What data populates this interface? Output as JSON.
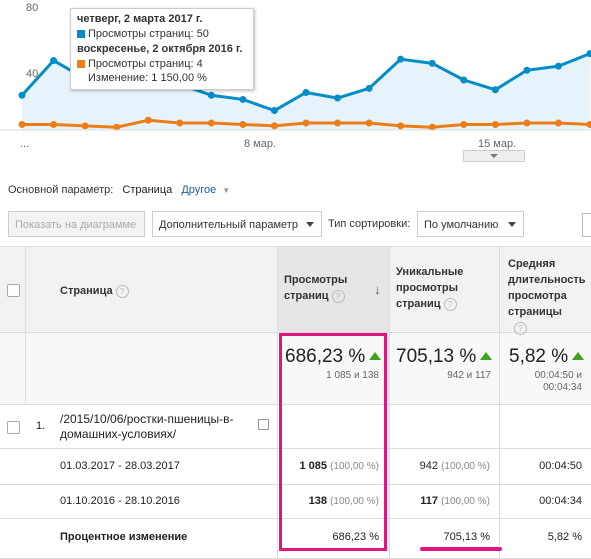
{
  "chart_data": {
    "type": "line",
    "ylim": [
      0,
      90
    ],
    "y_ticks": [
      "80",
      "40"
    ],
    "x_ticks": [
      "...",
      "8 мар.",
      "15 мар."
    ],
    "x": [
      "2017-03-01",
      "2017-03-02",
      "2017-03-03",
      "2017-03-04",
      "2017-03-05",
      "2017-03-06",
      "2017-03-07",
      "2017-03-08",
      "2017-03-09",
      "2017-03-10",
      "2017-03-11",
      "2017-03-12",
      "2017-03-13",
      "2017-03-14",
      "2017-03-15",
      "2017-03-16",
      "2017-03-17",
      "2017-03-18",
      "2017-03-19"
    ],
    "series": [
      {
        "name": "Просмотры страниц",
        "color": "#058dc7",
        "values": [
          25,
          50,
          37,
          37,
          33,
          33,
          25,
          22,
          14,
          27,
          23,
          30,
          51,
          48,
          36,
          29,
          43,
          46,
          55
        ]
      },
      {
        "name": "Просмотры страниц",
        "color": "#ed7e17",
        "values": [
          4,
          4,
          3,
          2,
          7,
          5,
          5,
          4,
          3,
          5,
          5,
          5,
          3,
          2,
          4,
          4,
          5,
          5,
          4
        ]
      }
    ],
    "grid": false
  },
  "tooltip": {
    "date1": "четверг, 2 марта 2017 г.",
    "row1": "Просмотры страниц: 50",
    "date2": "воскресенье, 2 октября 2016 г.",
    "row2": "Просмотры страниц: 4",
    "change": "Изменение: 1 150,00 %"
  },
  "controls": {
    "dimension_label": "Основной параметр:",
    "dimension_value": "Страница",
    "other_link": "Другое",
    "show_on_chart": "Показать на диаграмме",
    "secondary_dim": "Дополнительный параметр",
    "sort_label": "Тип сортировки:",
    "sort_value": "По умолчанию"
  },
  "table": {
    "headers": {
      "page": "Страница",
      "pageviews_1": "Просмотры",
      "pageviews_2": "страниц",
      "unique_1": "Уникальные",
      "unique_2": "просмотры",
      "unique_3": "страниц",
      "avg_1": "Средняя",
      "avg_2": "длительность",
      "avg_3": "просмотра",
      "avg_4": "страницы"
    },
    "totals": {
      "pageviews_change": "686,23 %",
      "pageviews_sub": "1 085 и 138",
      "unique_change": "705,13 %",
      "unique_sub": "942 и 117",
      "avg_change": "5,82 %",
      "avg_sub1": "00:04:50 и",
      "avg_sub2": "00:04:34"
    },
    "row": {
      "index": "1.",
      "path_line1": "/2015/10/06/ростки-пшеницы-в-",
      "path_line2": "домашних-условиях/"
    },
    "period1": {
      "label": "01.03.2017 - 28.03.2017",
      "pageviews": "1 085",
      "pageviews_pct": "(100,00 %)",
      "unique": "942",
      "unique_pct": "(100,00 %)",
      "avg": "00:04:50"
    },
    "period2": {
      "label": "01.10.2016 - 28.10.2016",
      "pageviews": "138",
      "pageviews_pct": "(100,00 %)",
      "unique": "117",
      "unique_pct": "(100,00 %)",
      "avg": "00:04:34"
    },
    "change_row": {
      "label": "Процентное изменение",
      "pageviews": "686,23 %",
      "unique": "705,13 %",
      "avg": "5,82 %"
    }
  },
  "colors": {
    "series1": "#058dc7",
    "series2": "#ed7e17",
    "highlight": "#e0157f",
    "up": "#3ea31f"
  }
}
